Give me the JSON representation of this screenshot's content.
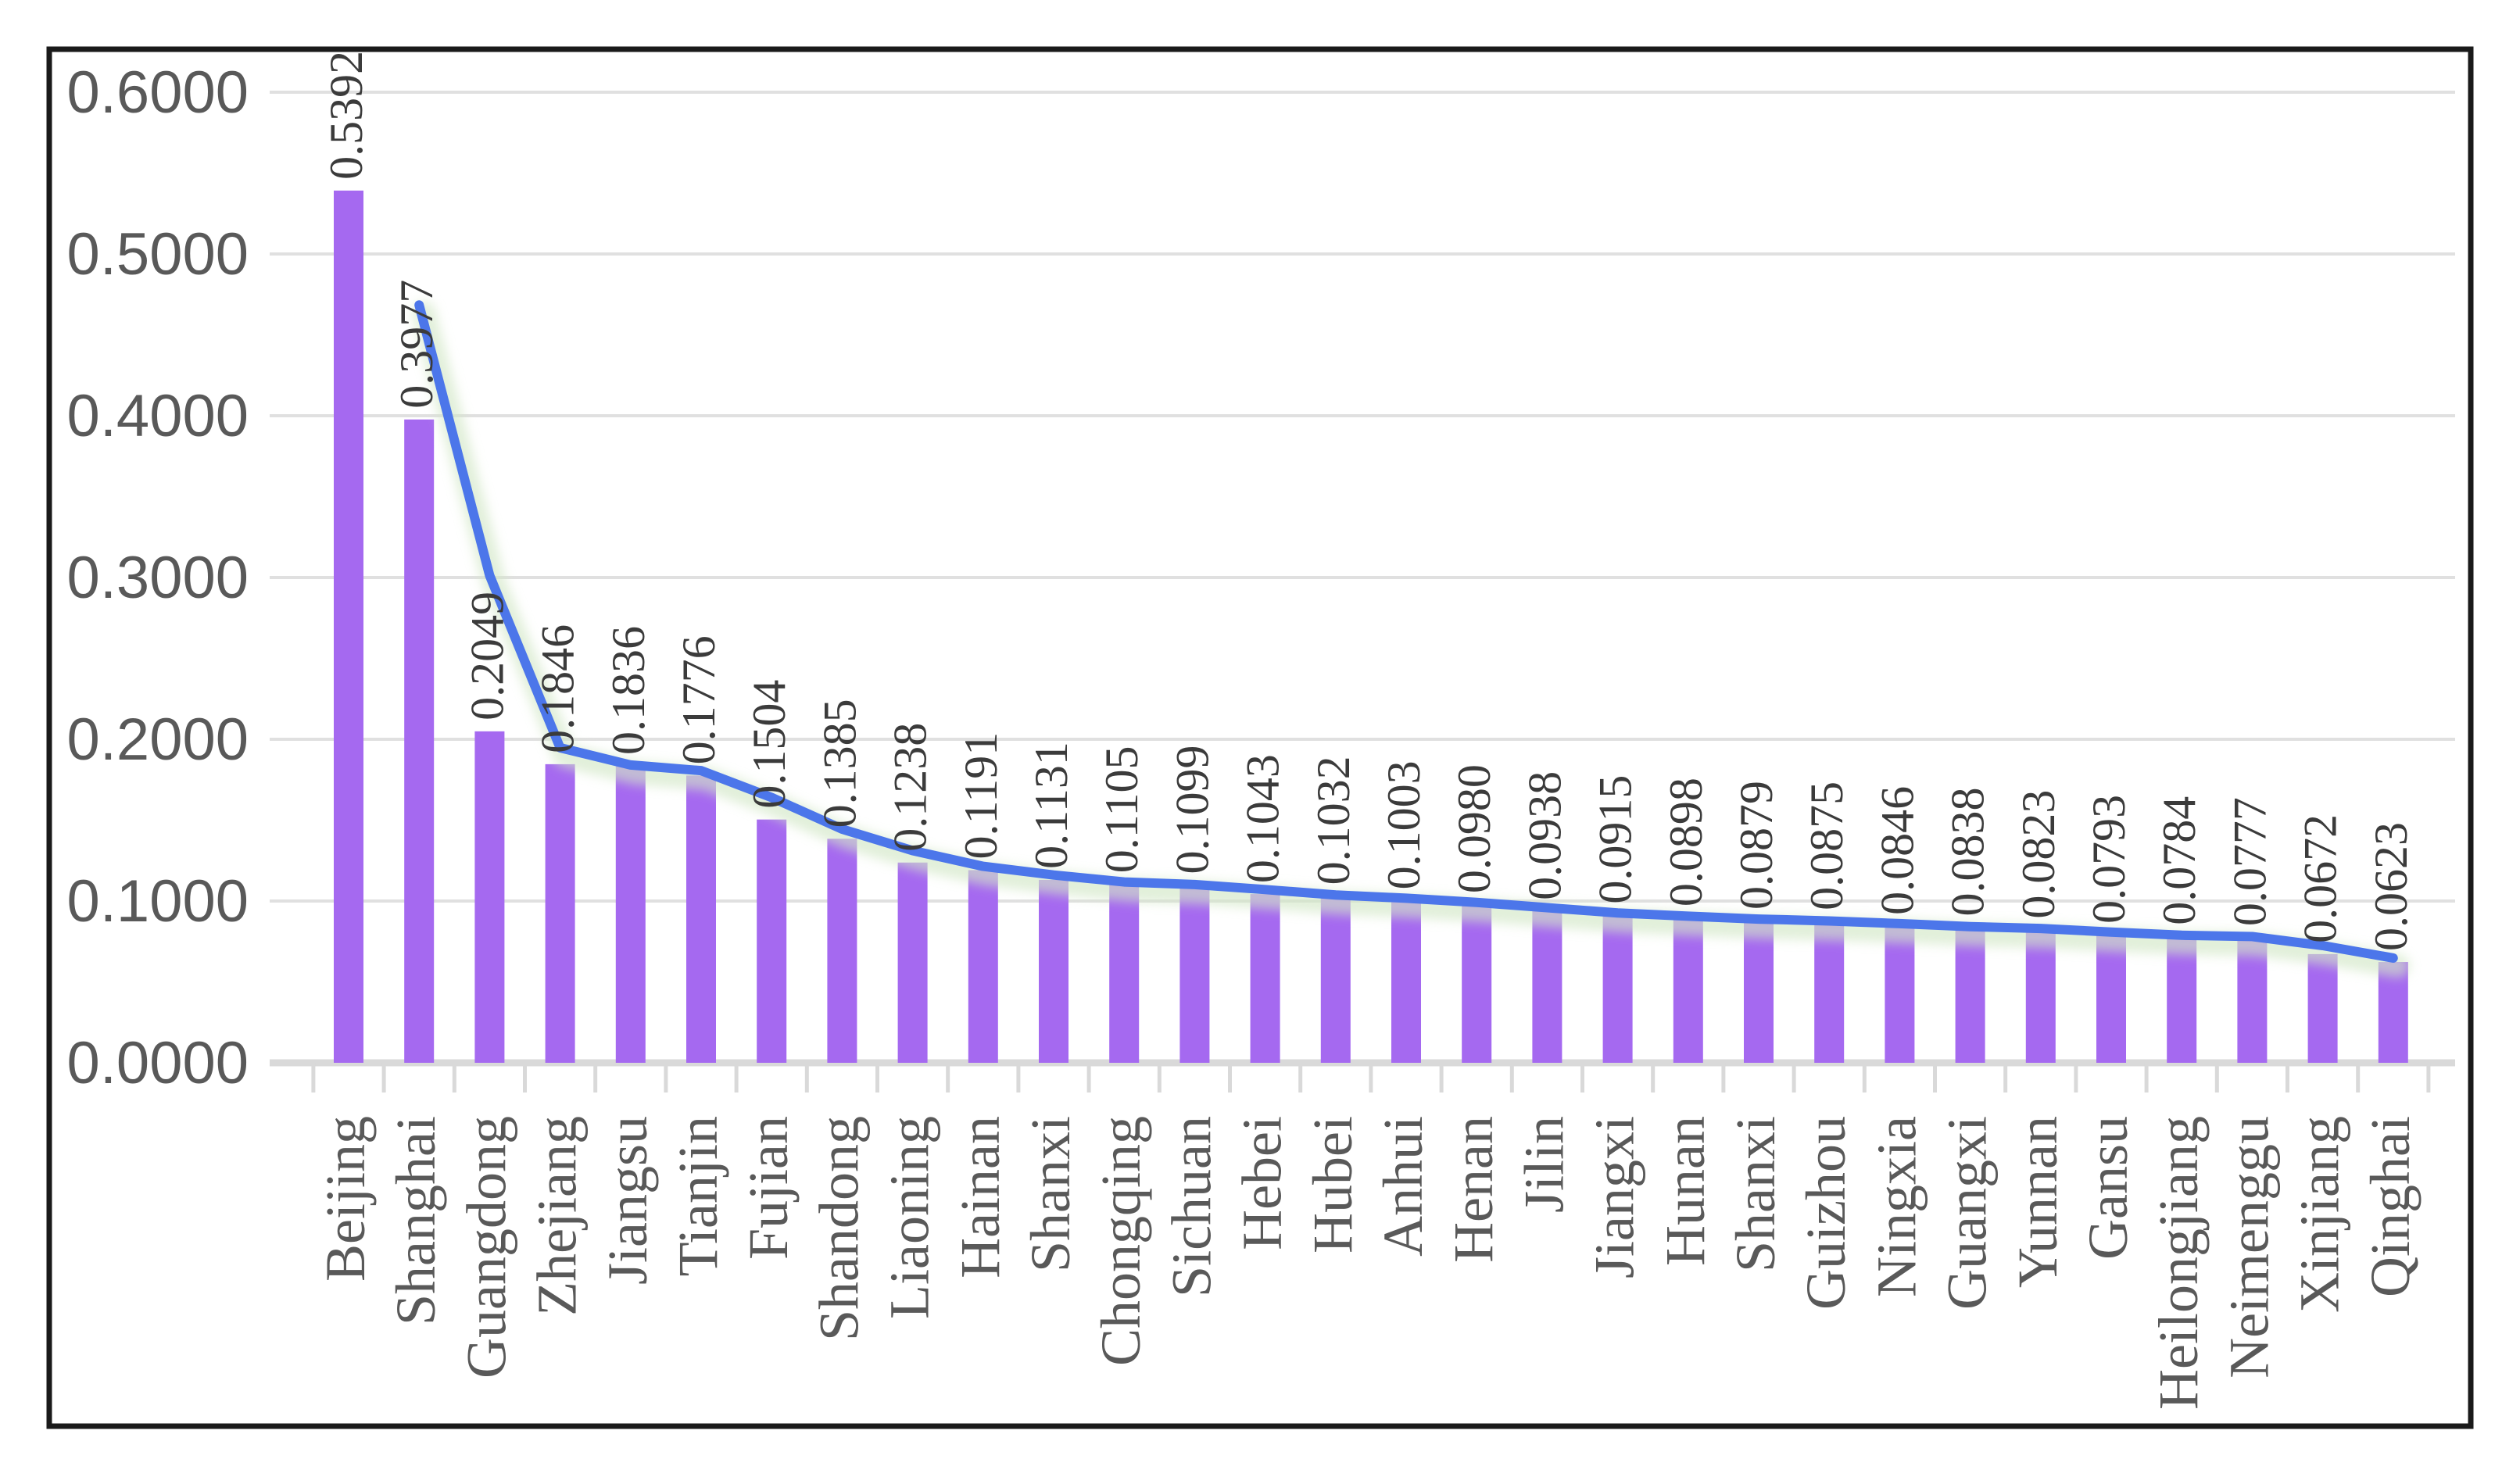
{
  "figure": {
    "background_color": "#ffffff",
    "border_color": "#1a1a1a",
    "legend": "none",
    "title": ""
  },
  "chart_data": {
    "type": "bar+line",
    "title": "",
    "xlabel": "",
    "ylabel": "",
    "categories": [
      "Beijing",
      "Shanghai",
      "Guangdong",
      "Zhejiang",
      "Jiangsu",
      "Tianjin",
      "Fujian",
      "Shandong",
      "Liaoning",
      "Hainan",
      "Shanxi",
      "Chongqing",
      "Sichuan",
      "Hebei",
      "Hubei",
      "Anhui",
      "Henan",
      "Jilin",
      "Jiangxi",
      "Hunan",
      "Shanxi",
      "Guizhou",
      "Ningxia",
      "Guangxi",
      "Yunnan",
      "Gansu",
      "Heilongjiang",
      "Neimenggu",
      "Xinjiang",
      "Qinghai"
    ],
    "series": [
      {
        "name": "province-index-bars",
        "type": "bar",
        "color": "#a569f0",
        "values": [
          0.5392,
          0.3977,
          0.2049,
          0.1846,
          0.1836,
          0.1776,
          0.1504,
          0.1385,
          0.1238,
          0.1191,
          0.1131,
          0.1105,
          0.1099,
          0.1043,
          0.1032,
          0.1003,
          0.098,
          0.0938,
          0.0915,
          0.0898,
          0.0879,
          0.0875,
          0.0846,
          0.0838,
          0.0823,
          0.0793,
          0.0784,
          0.0777,
          0.0672,
          0.0623
        ],
        "data_labels": [
          "0.5392",
          "0.3977",
          "0.2049",
          "0.1846",
          "0.1836",
          "0.1776",
          "0.1504",
          "0.1385",
          "0.1238",
          "0.1191",
          "0.1131",
          "0.1105",
          "0.1099",
          "0.1043",
          "0.1032",
          "0.1003",
          "0.0980",
          "0.0938",
          "0.0915",
          "0.0898",
          "0.0879",
          "0.0875",
          "0.0846",
          "0.0838",
          "0.0823",
          "0.0793",
          "0.0784",
          "0.0777",
          "0.0672",
          "0.0623"
        ]
      },
      {
        "name": "moving-average-trendline",
        "type": "line",
        "period": 2,
        "color": "#4c76ea",
        "glow_color": "#d2e7c6",
        "values": [
          null,
          0.46845,
          0.3013,
          0.19475,
          0.1841,
          0.1806,
          0.164,
          0.14445,
          0.13115,
          0.12145,
          0.1161,
          0.1118,
          0.1102,
          0.1071,
          0.10375,
          0.10175,
          0.09915,
          0.0959,
          0.09265,
          0.09065,
          0.08885,
          0.0877,
          0.08605,
          0.0842,
          0.08305,
          0.0808,
          0.07885,
          0.07805,
          0.07245,
          0.06475
        ]
      }
    ],
    "y_axis": {
      "min": 0.0,
      "max": 0.6,
      "step": 0.1,
      "tick_labels": [
        "0.6000",
        "0.5000",
        "0.4000",
        "0.3000",
        "0.2000",
        "0.1000",
        "0.0000"
      ],
      "grid": true,
      "gridline_color": "#e0e0e0",
      "label_color": "#595959"
    },
    "x_axis": {
      "tick_marks": true,
      "tick_color": "#d9d9d9",
      "baseline_color": "#d9d9d9",
      "label_color": "#595959"
    },
    "legend_position": "none"
  }
}
